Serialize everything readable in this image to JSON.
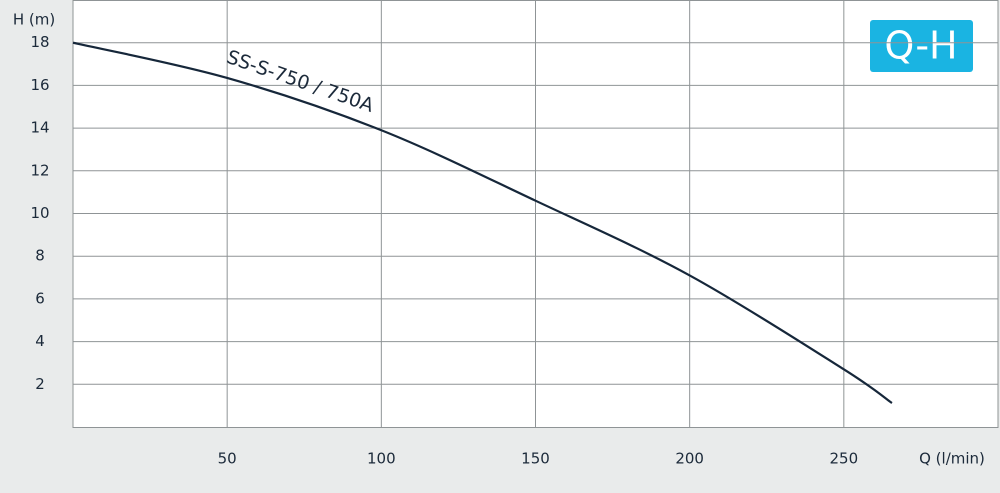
{
  "chart_data": {
    "type": "line",
    "x_label": "Q (l/min)",
    "y_label": "H (m)",
    "badge": "Q-H",
    "x": [
      0,
      50,
      100,
      150,
      200,
      250,
      265.6
    ],
    "series": [
      {
        "name": "SS-S-750 / 750A",
        "color": "#16273a",
        "values": [
          18,
          16.35,
          13.9,
          10.6,
          7.1,
          2.7,
          1.12
        ]
      }
    ],
    "xlim": [
      0,
      300
    ],
    "xticks": [
      50,
      100,
      150,
      200,
      250
    ],
    "ylim": [
      0,
      20
    ],
    "yticks": [
      2,
      4,
      6,
      8,
      10,
      12,
      14,
      16,
      18
    ],
    "grid": true
  }
}
